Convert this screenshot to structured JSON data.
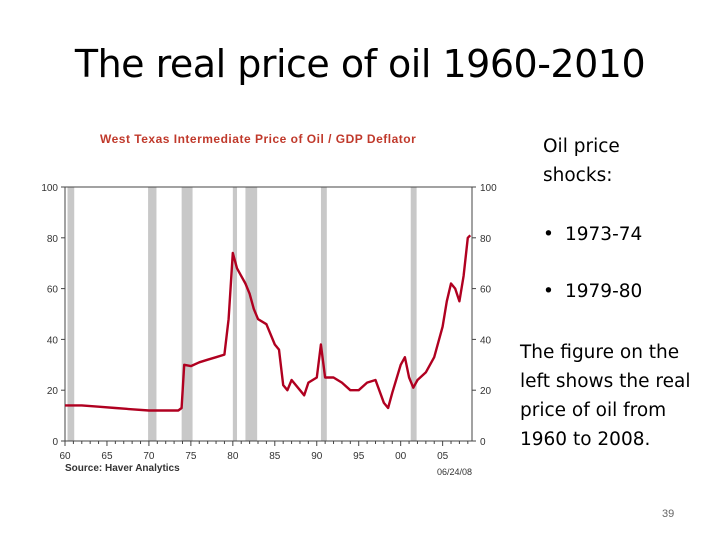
{
  "slide": {
    "title": "The real price of oil 1960-2010",
    "page_number": "39"
  },
  "sidebar": {
    "heading": "Oil price shocks:",
    "bullets": [
      "1973-74",
      "1979-80"
    ],
    "description": "The figure on the left shows the real price of oil from 1960 to 2008."
  },
  "colors": {
    "line": "#b00020",
    "recession": "#c8c8c8",
    "title": "#c0392b"
  },
  "chart_data": {
    "type": "line",
    "title": "West Texas Intermediate Price of Oil / GDP Deflator",
    "source": "Source: Haver Analytics",
    "date_stamp": "06/24/08",
    "xlabel": "",
    "ylabel": "",
    "xlim": [
      1960,
      2008.5
    ],
    "ylim": [
      0,
      100
    ],
    "y_ticks": [
      "0",
      "20",
      "40",
      "60",
      "80",
      "100"
    ],
    "x_ticks": [
      "60",
      "65",
      "70",
      "75",
      "80",
      "85",
      "90",
      "95",
      "00",
      "05"
    ],
    "recessions": [
      [
        1960.3,
        1961.1
      ],
      [
        1969.9,
        1970.9
      ],
      [
        1973.9,
        1975.2
      ],
      [
        1980.0,
        1980.5
      ],
      [
        1981.5,
        1982.9
      ],
      [
        1990.5,
        1991.2
      ],
      [
        2001.2,
        2001.9
      ]
    ],
    "series": [
      {
        "x": [
          1960,
          1962,
          1964,
          1966,
          1968,
          1970,
          1972,
          1973.5,
          1973.9,
          1974.2,
          1975,
          1976,
          1977,
          1978,
          1979,
          1979.5,
          1980,
          1980.5,
          1981,
          1981.5,
          1982,
          1982.5,
          1983,
          1984,
          1985,
          1985.5,
          1986,
          1986.5,
          1987,
          1988,
          1988.5,
          1989,
          1990,
          1990.5,
          1990.8,
          1991,
          1992,
          1993,
          1994,
          1995,
          1996,
          1997,
          1998,
          1998.5,
          1999,
          2000,
          2000.5,
          2001,
          2001.5,
          2002,
          2003,
          2004,
          2005,
          2005.5,
          2006,
          2006.5,
          2007,
          2007.5,
          2008,
          2008.3
        ],
        "y": [
          14,
          14,
          13.5,
          13,
          12.5,
          12,
          12,
          12,
          13,
          30,
          29.5,
          31,
          32,
          33,
          34,
          48,
          74,
          68,
          65,
          62,
          58,
          52,
          48,
          46,
          38,
          36,
          22,
          20,
          24,
          20,
          18,
          23,
          25,
          38,
          30,
          25,
          25,
          23,
          20,
          20,
          23,
          24,
          15,
          13,
          19,
          30,
          33,
          25,
          21,
          24,
          27,
          33,
          45,
          55,
          62,
          60,
          55,
          65,
          80,
          81
        ]
      }
    ]
  }
}
